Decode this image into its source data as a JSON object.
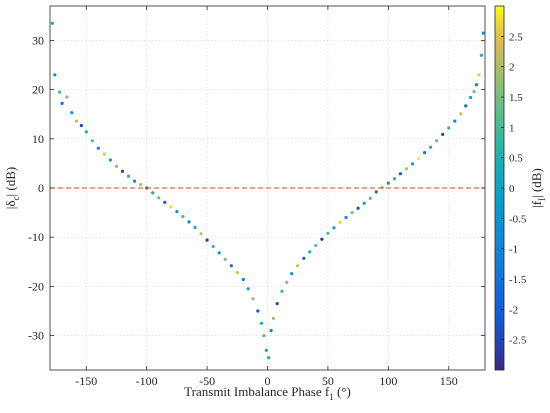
{
  "chart_data": {
    "type": "scatter",
    "title": "",
    "xlabel": {
      "main": "Transmit Imbalance Phase f",
      "sub": "1",
      "unit": " (°)"
    },
    "ylabel": {
      "pre": "|δ",
      "sub": "c",
      "post": "| (dB)"
    },
    "colorbar_label": {
      "pre": "|f",
      "sub": "I",
      "post": "| (dB)"
    },
    "xlim": [
      -180,
      180
    ],
    "ylim": [
      -37,
      37
    ],
    "x_ticks": [
      -150,
      -100,
      -50,
      0,
      50,
      100,
      150
    ],
    "y_ticks": [
      -30,
      -20,
      -10,
      0,
      10,
      20,
      30
    ],
    "clim": [
      -3,
      3
    ],
    "colorbar_ticks": [
      -2.5,
      -2,
      -1.5,
      -1,
      -0.5,
      0,
      0.5,
      1,
      1.5,
      2,
      2.5
    ],
    "colormap": "parula",
    "grid": true,
    "reference_line": {
      "y": 0,
      "color": "#d9452b",
      "style": "dashed"
    },
    "series": [
      {
        "points": [
          [
            -178,
            33.5,
            0.2
          ],
          [
            -176,
            23.0,
            -0.4
          ],
          [
            -172,
            19.5,
            0.9
          ],
          [
            -170,
            17.2,
            -1.8
          ],
          [
            -166,
            18.5,
            1.6
          ],
          [
            -162,
            15.3,
            -0.7
          ],
          [
            -158,
            13.6,
            2.2
          ],
          [
            -154,
            12.7,
            -2.4
          ],
          [
            -150,
            11.4,
            0.3
          ],
          [
            -145,
            9.6,
            1.1
          ],
          [
            -140,
            8.1,
            -1.2
          ],
          [
            -135,
            6.9,
            2.6
          ],
          [
            -130,
            5.7,
            -0.2
          ],
          [
            -125,
            4.4,
            1.8
          ],
          [
            -120,
            3.4,
            -2.7
          ],
          [
            -115,
            2.4,
            0.6
          ],
          [
            -110,
            1.4,
            -0.9
          ],
          [
            -105,
            0.7,
            2.0
          ],
          [
            -100,
            0.0,
            -1.5
          ],
          [
            -95,
            -1.0,
            0.1
          ],
          [
            -90,
            -2.0,
            1.4
          ],
          [
            -85,
            -2.9,
            -2.1
          ],
          [
            -80,
            -3.8,
            2.8
          ],
          [
            -75,
            -4.8,
            -0.5
          ],
          [
            -70,
            -5.8,
            1.0
          ],
          [
            -65,
            -6.9,
            -1.1
          ],
          [
            -60,
            -8.0,
            0.4
          ],
          [
            -55,
            -9.3,
            2.3
          ],
          [
            -50,
            -10.6,
            -2.6
          ],
          [
            -45,
            -11.9,
            0.8
          ],
          [
            -40,
            -13.2,
            -0.3
          ],
          [
            -35,
            -14.5,
            1.5
          ],
          [
            -30,
            -15.8,
            -1.7
          ],
          [
            -25,
            -17.2,
            2.5
          ],
          [
            -20,
            -18.6,
            -0.8
          ],
          [
            -16,
            -20.5,
            0.0
          ],
          [
            -12,
            -22.5,
            1.9
          ],
          [
            -8,
            -25.0,
            -2.2
          ],
          [
            -5,
            -27.5,
            0.5
          ],
          [
            -3,
            -30.0,
            1.2
          ],
          [
            -1,
            -33.0,
            -0.1
          ],
          [
            1,
            -34.5,
            0.3
          ],
          [
            3,
            -29.0,
            -1.3
          ],
          [
            5,
            -26.5,
            2.1
          ],
          [
            8,
            -23.5,
            -2.5
          ],
          [
            12,
            -21.0,
            0.7
          ],
          [
            16,
            -19.2,
            1.7
          ],
          [
            20,
            -17.4,
            -0.6
          ],
          [
            25,
            -15.8,
            2.4
          ],
          [
            30,
            -14.3,
            -1.9
          ],
          [
            35,
            -13.0,
            0.2
          ],
          [
            40,
            -11.7,
            1.3
          ],
          [
            45,
            -10.4,
            -2.8
          ],
          [
            50,
            -9.2,
            0.9
          ],
          [
            55,
            -8.1,
            -0.4
          ],
          [
            60,
            -7.0,
            2.7
          ],
          [
            65,
            -6.0,
            -1.0
          ],
          [
            70,
            -5.0,
            1.6
          ],
          [
            75,
            -4.1,
            -2.3
          ],
          [
            80,
            -3.1,
            0.0
          ],
          [
            85,
            -2.1,
            1.1
          ],
          [
            90,
            -0.8,
            -1.6
          ],
          [
            95,
            0.1,
            2.2
          ],
          [
            100,
            1.0,
            -0.7
          ],
          [
            105,
            1.9,
            0.6
          ],
          [
            110,
            2.9,
            -2.0
          ],
          [
            115,
            3.9,
            1.9
          ],
          [
            120,
            4.9,
            -0.2
          ],
          [
            125,
            6.0,
            2.9
          ],
          [
            130,
            7.2,
            -1.4
          ],
          [
            135,
            8.3,
            0.4
          ],
          [
            140,
            9.6,
            1.4
          ],
          [
            145,
            10.9,
            -2.5
          ],
          [
            150,
            12.2,
            0.8
          ],
          [
            155,
            13.6,
            -0.9
          ],
          [
            160,
            15.1,
            2.3
          ],
          [
            164,
            16.7,
            -1.8
          ],
          [
            168,
            18.4,
            0.1
          ],
          [
            171,
            19.6,
            1.5
          ],
          [
            173,
            21.0,
            -1.1
          ],
          [
            175,
            23.0,
            2.6
          ],
          [
            177,
            27.0,
            0.3
          ],
          [
            178.5,
            31.5,
            -0.2
          ]
        ]
      }
    ]
  }
}
